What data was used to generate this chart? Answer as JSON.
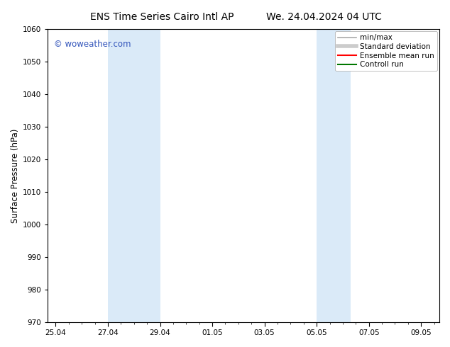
{
  "title_left": "ENS Time Series Cairo Intl AP",
  "title_right": "We. 24.04.2024 04 UTC",
  "ylabel": "Surface Pressure (hPa)",
  "ylim": [
    970,
    1060
  ],
  "yticks": [
    970,
    980,
    990,
    1000,
    1010,
    1020,
    1030,
    1040,
    1050,
    1060
  ],
  "xtick_labels": [
    "25.04",
    "27.04",
    "29.04",
    "01.05",
    "03.05",
    "05.05",
    "07.05",
    "09.05"
  ],
  "xtick_positions": [
    0,
    2,
    4,
    6,
    8,
    10,
    12,
    14
  ],
  "xlim": [
    -0.3,
    14.7
  ],
  "shaded_regions": [
    {
      "xmin": 2.0,
      "xmax": 4.0
    },
    {
      "xmin": 10.0,
      "xmax": 11.3
    }
  ],
  "shaded_color": "#daeaf8",
  "background_color": "#ffffff",
  "watermark_text": "© woweather.com",
  "watermark_color": "#3355bb",
  "legend_entries": [
    {
      "label": "min/max",
      "color": "#aaaaaa",
      "lw": 1.2
    },
    {
      "label": "Standard deviation",
      "color": "#cccccc",
      "lw": 4
    },
    {
      "label": "Ensemble mean run",
      "color": "#ff0000",
      "lw": 1.5
    },
    {
      "label": "Controll run",
      "color": "#007700",
      "lw": 1.5
    }
  ],
  "title_fontsize": 10,
  "tick_fontsize": 7.5,
  "ylabel_fontsize": 8.5,
  "legend_fontsize": 7.5,
  "watermark_fontsize": 8.5,
  "spine_color": "#000000",
  "spine_linewidth": 0.8
}
